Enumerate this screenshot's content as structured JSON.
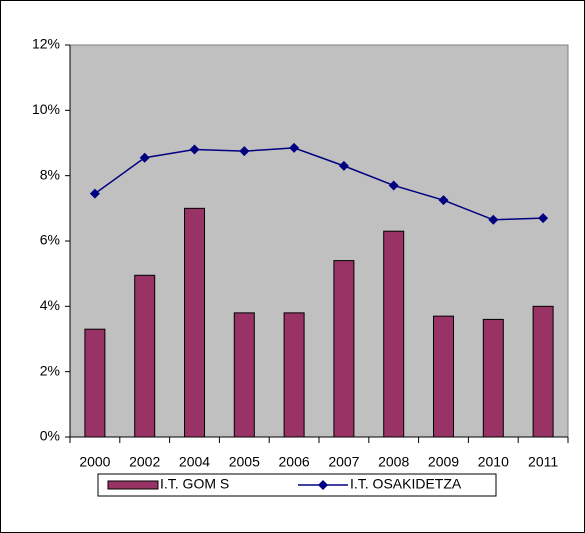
{
  "chart_data": {
    "type": "combo",
    "categories": [
      "2000",
      "2002",
      "2004",
      "2005",
      "2006",
      "2007",
      "2008",
      "2009",
      "2010",
      "2011"
    ],
    "series": [
      {
        "name": "I.T. GOM S",
        "type": "bar",
        "color": "#993366",
        "values": [
          3.3,
          4.95,
          7.0,
          3.8,
          3.8,
          5.4,
          6.3,
          3.7,
          3.6,
          4.0
        ]
      },
      {
        "name": "I.T. OSAKIDETZA",
        "type": "line",
        "color": "#000080",
        "values": [
          7.45,
          8.55,
          8.8,
          8.75,
          8.85,
          8.3,
          7.7,
          7.25,
          6.65,
          6.7
        ]
      }
    ],
    "ylim": [
      0,
      12
    ],
    "yticks": [
      {
        "value": 0,
        "label": "0%"
      },
      {
        "value": 2,
        "label": "2%"
      },
      {
        "value": 4,
        "label": "4%"
      },
      {
        "value": 6,
        "label": "6%"
      },
      {
        "value": 8,
        "label": "8%"
      },
      {
        "value": 10,
        "label": "10%"
      },
      {
        "value": 12,
        "label": "12%"
      }
    ],
    "grid": false,
    "legend": "bottom",
    "plot_background": "#c0c0c0"
  }
}
